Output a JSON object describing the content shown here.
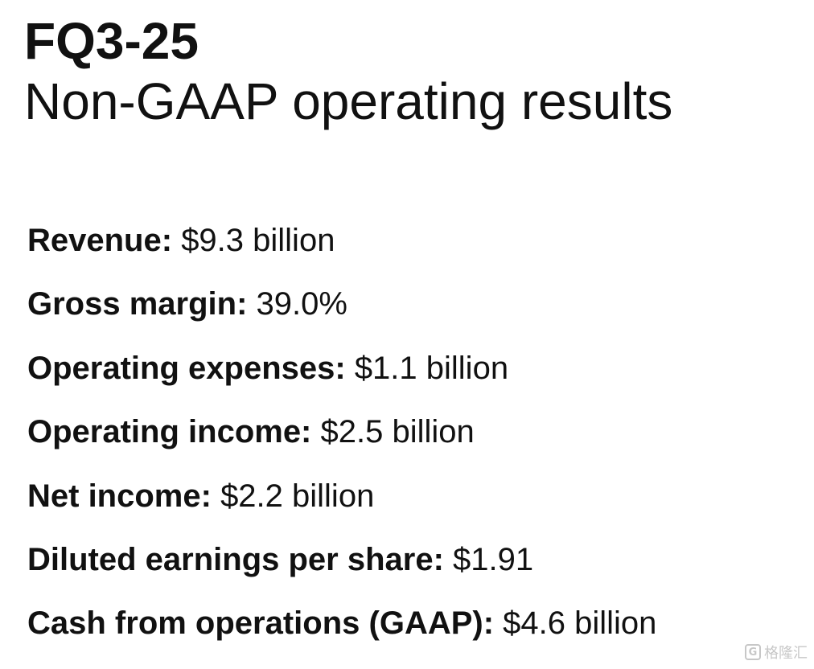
{
  "header": {
    "title": "FQ3-25",
    "subtitle": "Non-GAAP operating results"
  },
  "metrics": [
    {
      "label": "Revenue:",
      "value": "$9.3 billion"
    },
    {
      "label": "Gross margin:",
      "value": "39.0%"
    },
    {
      "label": "Operating expenses:",
      "value": "$1.1 billion"
    },
    {
      "label": "Operating income:",
      "value": "$2.5 billion"
    },
    {
      "label": "Net income:",
      "value": "$2.2 billion"
    },
    {
      "label": "Diluted earnings per share:",
      "value": "$1.91"
    },
    {
      "label": "Cash from operations (GAAP):",
      "value": "$4.6 billion"
    }
  ],
  "watermark": {
    "icon": "G",
    "text": "格隆汇"
  }
}
